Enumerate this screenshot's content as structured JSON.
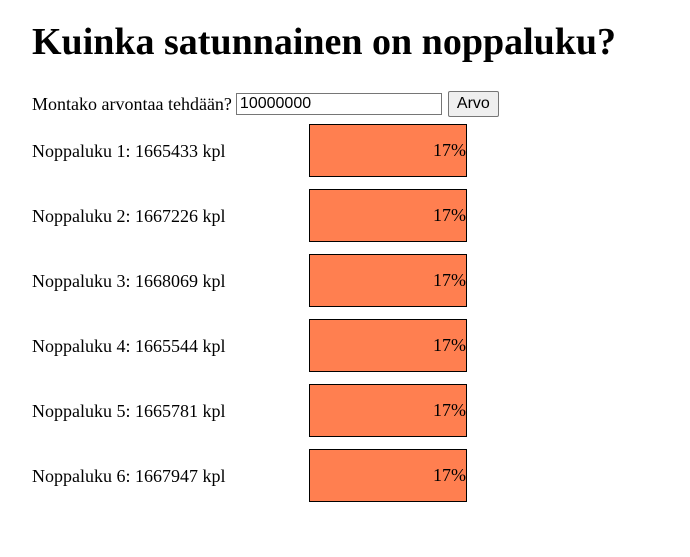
{
  "page": {
    "title": "Kuinka satunnainen on noppaluku?",
    "question": "Montako arvontaa tehdään?",
    "input_value": "10000000",
    "button_label": "Arvo"
  },
  "colors": {
    "bar_fill": "#ff7f50",
    "bar_border": "#000000"
  },
  "results": [
    {
      "label": "Noppaluku 1: 1665433 kpl",
      "percent_text": "17%",
      "percent": 17
    },
    {
      "label": "Noppaluku 2: 1667226 kpl",
      "percent_text": "17%",
      "percent": 17
    },
    {
      "label": "Noppaluku 3: 1668069 kpl",
      "percent_text": "17%",
      "percent": 17
    },
    {
      "label": "Noppaluku 4: 1665544 kpl",
      "percent_text": "17%",
      "percent": 17
    },
    {
      "label": "Noppaluku 5: 1665781 kpl",
      "percent_text": "17%",
      "percent": 17
    },
    {
      "label": "Noppaluku 6: 1667947 kpl",
      "percent_text": "17%",
      "percent": 17
    }
  ]
}
